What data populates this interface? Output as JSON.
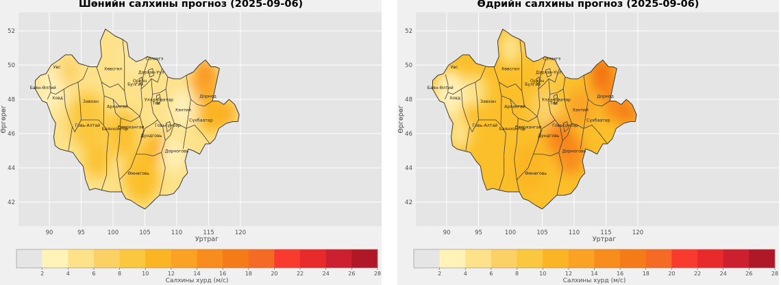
{
  "panels": [
    {
      "id": "night",
      "title": "Шөнийн салхины прогноз (2025-09-06)",
      "xlabel": "Уртраг",
      "ylabel": "Өргөрөг",
      "x_ticks": [
        "90",
        "95",
        "100",
        "105",
        "110",
        "115",
        "120"
      ],
      "y_ticks": [
        "42",
        "44",
        "46",
        "48",
        "50",
        "52"
      ],
      "colorbar_label": "Салхины хурд (м/с)",
      "field": {
        "base": "#fde28a",
        "blobs": [
          {
            "lon": 90.5,
            "lat": 48.7,
            "r": 2.2,
            "color": "#fff0b8"
          },
          {
            "lon": 89.5,
            "lat": 47.8,
            "r": 1.5,
            "color": "#fff0b8"
          },
          {
            "lon": 93.0,
            "lat": 49.6,
            "r": 1.5,
            "color": "#fbd166"
          },
          {
            "lon": 96.0,
            "lat": 46.8,
            "r": 3.0,
            "color": "#fbc73e"
          },
          {
            "lon": 97.5,
            "lat": 44.5,
            "r": 2.0,
            "color": "#fbc232"
          },
          {
            "lon": 101.5,
            "lat": 46.0,
            "r": 2.5,
            "color": "#fbc232"
          },
          {
            "lon": 104.5,
            "lat": 43.5,
            "r": 2.8,
            "color": "#fbbf2a"
          },
          {
            "lon": 106.5,
            "lat": 45.2,
            "r": 1.6,
            "color": "#fbb524"
          },
          {
            "lon": 103.5,
            "lat": 50.5,
            "r": 2.2,
            "color": "#fde7a0"
          },
          {
            "lon": 111.0,
            "lat": 47.5,
            "r": 2.0,
            "color": "#fff0b8"
          },
          {
            "lon": 109.5,
            "lat": 44.8,
            "r": 1.8,
            "color": "#fff0b8"
          },
          {
            "lon": 114.5,
            "lat": 49.0,
            "r": 2.2,
            "color": "#fba225"
          },
          {
            "lon": 114.2,
            "lat": 49.8,
            "r": 1.0,
            "color": "#f88c1c"
          },
          {
            "lon": 115.5,
            "lat": 47.2,
            "r": 2.2,
            "color": "#fbb524"
          },
          {
            "lon": 118.0,
            "lat": 47.2,
            "r": 1.4,
            "color": "#fbae22"
          }
        ]
      }
    },
    {
      "id": "day",
      "title": "Өдрийн салхины прогноз (2025-09-06)",
      "xlabel": "Уртраг",
      "ylabel": "Өргөрөг",
      "x_ticks": [
        "90",
        "95",
        "100",
        "105",
        "110",
        "115",
        "120"
      ],
      "y_ticks": [
        "42",
        "44",
        "46",
        "48",
        "50",
        "52"
      ],
      "colorbar_label": "Салхины хурд (м/с)",
      "field": {
        "base": "#fbbf2a",
        "blobs": [
          {
            "lon": 90.5,
            "lat": 48.3,
            "r": 2.6,
            "color": "#fff0b8"
          },
          {
            "lon": 92.0,
            "lat": 46.0,
            "r": 1.8,
            "color": "#fde28a"
          },
          {
            "lon": 94.5,
            "lat": 48.5,
            "r": 1.8,
            "color": "#fde28a"
          },
          {
            "lon": 100.0,
            "lat": 51.0,
            "r": 1.8,
            "color": "#fde28a"
          },
          {
            "lon": 105.5,
            "lat": 47.5,
            "r": 2.2,
            "color": "#fbd166"
          },
          {
            "lon": 106.5,
            "lat": 49.8,
            "r": 1.6,
            "color": "#fbd166"
          },
          {
            "lon": 103.0,
            "lat": 44.0,
            "r": 2.5,
            "color": "#fbb524"
          },
          {
            "lon": 107.5,
            "lat": 45.8,
            "r": 2.0,
            "color": "#f88c1c"
          },
          {
            "lon": 109.5,
            "lat": 44.8,
            "r": 2.2,
            "color": "#f88c1c"
          },
          {
            "lon": 108.5,
            "lat": 45.8,
            "r": 1.0,
            "color": "#f57a18"
          },
          {
            "lon": 111.0,
            "lat": 47.5,
            "r": 2.0,
            "color": "#fba225"
          },
          {
            "lon": 114.5,
            "lat": 49.3,
            "r": 2.0,
            "color": "#f57a18"
          },
          {
            "lon": 114.0,
            "lat": 49.8,
            "r": 1.0,
            "color": "#f06a10"
          },
          {
            "lon": 116.5,
            "lat": 47.8,
            "r": 2.0,
            "color": "#f88c1c"
          },
          {
            "lon": 118.5,
            "lat": 47.2,
            "r": 1.3,
            "color": "#f57a18"
          }
        ]
      }
    }
  ],
  "provinces": [
    {
      "name": "Баян-Өлгий",
      "lon": 89.0,
      "lat": 48.6
    },
    {
      "name": "Увс",
      "lon": 91.2,
      "lat": 49.8
    },
    {
      "name": "Ховд",
      "lon": 91.3,
      "lat": 48.0
    },
    {
      "name": "Завхан",
      "lon": 96.5,
      "lat": 47.8
    },
    {
      "name": "Говь-Алтай",
      "lon": 96.0,
      "lat": 46.4
    },
    {
      "name": "Хөвсгөл",
      "lon": 100.0,
      "lat": 49.7
    },
    {
      "name": "Булган",
      "lon": 103.5,
      "lat": 48.8
    },
    {
      "name": "Орхон",
      "lon": 104.2,
      "lat": 49.0
    },
    {
      "name": "Архангай",
      "lon": 100.7,
      "lat": 47.5
    },
    {
      "name": "Баянхонгор",
      "lon": 100.3,
      "lat": 46.2
    },
    {
      "name": "Өвөрхангай",
      "lon": 102.8,
      "lat": 46.3
    },
    {
      "name": "Сэлэнгэ",
      "lon": 106.5,
      "lat": 50.3
    },
    {
      "name": "Дархан-Уул",
      "lon": 106.0,
      "lat": 49.5
    },
    {
      "name": "Улаанбаатар",
      "lon": 107.2,
      "lat": 47.9
    },
    {
      "name": "Төв",
      "lon": 106.8,
      "lat": 47.7
    },
    {
      "name": "Говьсүмбэр",
      "lon": 108.6,
      "lat": 46.4
    },
    {
      "name": "Дундговь",
      "lon": 106.0,
      "lat": 45.8
    },
    {
      "name": "Хэнтий",
      "lon": 111.0,
      "lat": 47.3
    },
    {
      "name": "Дорнод",
      "lon": 114.9,
      "lat": 48.1
    },
    {
      "name": "Сүхбаатар",
      "lon": 113.8,
      "lat": 46.7
    },
    {
      "name": "Дорноговь",
      "lon": 110.0,
      "lat": 44.9
    },
    {
      "name": "Өмнөговь",
      "lon": 104.0,
      "lat": 43.6
    }
  ],
  "colorbar": {
    "ticks": [
      "2",
      "4",
      "6",
      "8",
      "10",
      "12",
      "14",
      "16",
      "18",
      "20",
      "22",
      "24",
      "26",
      "28"
    ],
    "colors": [
      "#e5e5e5",
      "#fff3b8",
      "#fde28a",
      "#fbd166",
      "#fbc73e",
      "#fbb524",
      "#fba225",
      "#f88c1c",
      "#f57a18",
      "#f56a25",
      "#f93a2e",
      "#e82a2a",
      "#cc2030",
      "#b01828"
    ]
  }
}
